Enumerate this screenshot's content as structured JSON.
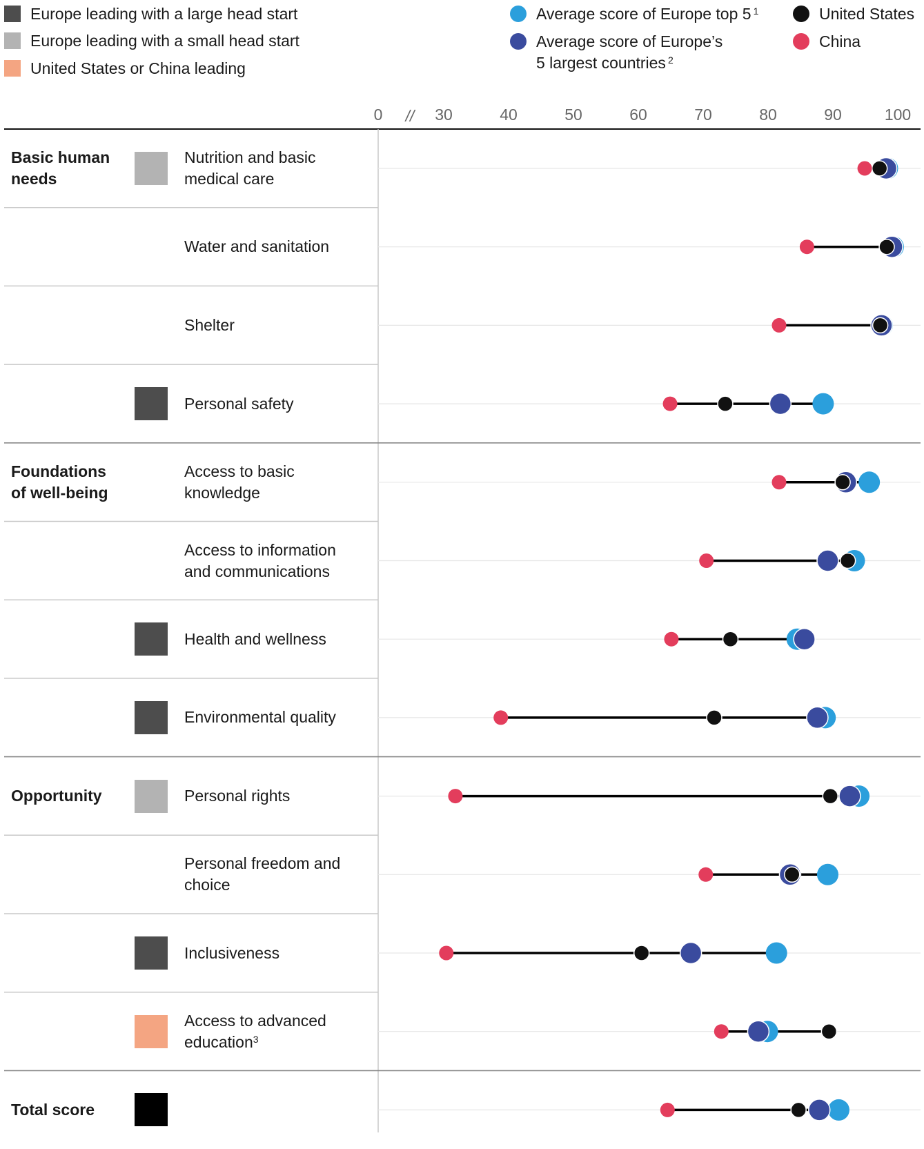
{
  "colors": {
    "status_large": "#4d4d4d",
    "status_small": "#b3b3b3",
    "status_usc": "#f4a582",
    "status_total": "#000000",
    "europe_top5": "#2b9fdc",
    "europe_largest5": "#3a4b9e",
    "united_states": "#111111",
    "china": "#e33d5c"
  },
  "legend": {
    "status": [
      {
        "key": "large",
        "label": "Europe leading with a large head start"
      },
      {
        "key": "small",
        "label": "Europe leading with a small head start"
      },
      {
        "key": "usc",
        "label": "United States or China leading"
      }
    ],
    "series": {
      "europe_top5": {
        "label": "Average score of Europe top 5",
        "note": "1"
      },
      "europe_largest5": {
        "label_line1": "Average score of Europe’s",
        "label_line2": "5 largest countries",
        "note": "2"
      },
      "united_states": {
        "label": "United States"
      },
      "china": {
        "label": "China"
      }
    }
  },
  "chart_data": {
    "type": "dot-range",
    "axis": {
      "ticks": [
        "0",
        "30",
        "40",
        "50",
        "60",
        "70",
        "80",
        "90",
        "100"
      ],
      "break_mark": "//",
      "xlim": [
        30,
        100
      ]
    },
    "series_names": [
      "Average score of Europe top 5",
      "Average score of Europe’s 5 largest countries",
      "United States",
      "China"
    ],
    "rows": [
      {
        "category": "Basic human\nneeds",
        "status": "small",
        "label": "Nutrition and basic\nmedical care",
        "label_note": "",
        "europe_top5": 98.4,
        "europe_largest5": 98.2,
        "united_states": 97.2,
        "china": 94.9
      },
      {
        "category": "",
        "status": "",
        "label": "Water and sanitation",
        "label_note": "",
        "europe_top5": 99.3,
        "europe_largest5": 99.1,
        "united_states": 98.3,
        "china": 86.0
      },
      {
        "category": "",
        "status": "",
        "label": "Shelter",
        "label_note": "",
        "europe_top5": 97.6,
        "europe_largest5": 97.5,
        "united_states": 97.3,
        "china": 81.7
      },
      {
        "category": "",
        "status": "large",
        "label": "Personal safety",
        "label_note": "",
        "europe_top5": 88.5,
        "europe_largest5": 81.9,
        "united_states": 73.4,
        "china": 64.9
      },
      {
        "category": "Foundations\nof well-being",
        "status": "",
        "label": "Access to basic\nknowledge",
        "label_note": "",
        "europe_top5": 95.6,
        "europe_largest5": 92.0,
        "united_states": 91.5,
        "china": 81.7
      },
      {
        "category": "",
        "status": "",
        "label": "Access to information\nand communications",
        "label_note": "",
        "europe_top5": 93.3,
        "europe_largest5": 89.2,
        "united_states": 92.3,
        "china": 70.5
      },
      {
        "category": "",
        "status": "large",
        "label": "Health and wellness",
        "label_note": "",
        "europe_top5": 84.5,
        "europe_largest5": 85.6,
        "united_states": 74.2,
        "china": 65.1
      },
      {
        "category": "",
        "status": "large",
        "label": "Environmental quality",
        "label_note": "",
        "europe_top5": 88.8,
        "europe_largest5": 87.6,
        "united_states": 71.7,
        "china": 38.8
      },
      {
        "category": "Opportunity",
        "status": "small",
        "label": "Personal rights",
        "label_note": "",
        "europe_top5": 94.0,
        "europe_largest5": 92.6,
        "united_states": 89.6,
        "china": 31.8
      },
      {
        "category": "",
        "status": "",
        "label": "Personal freedom and\nchoice",
        "label_note": "",
        "europe_top5": 89.2,
        "europe_largest5": 83.4,
        "united_states": 83.7,
        "china": 70.4
      },
      {
        "category": "",
        "status": "large",
        "label": "Inclusiveness",
        "label_note": "",
        "europe_top5": 81.3,
        "europe_largest5": 68.1,
        "united_states": 60.5,
        "china": 30.4
      },
      {
        "category": "",
        "status": "usc",
        "label": "Access to advanced\neducation",
        "label_note": "3",
        "europe_top5": 79.9,
        "europe_largest5": 78.5,
        "united_states": 89.4,
        "china": 72.8
      },
      {
        "category": "Total score",
        "status": "total",
        "label": "",
        "label_note": "",
        "europe_top5": 90.9,
        "europe_largest5": 87.9,
        "united_states": 84.7,
        "china": 64.5
      }
    ]
  }
}
